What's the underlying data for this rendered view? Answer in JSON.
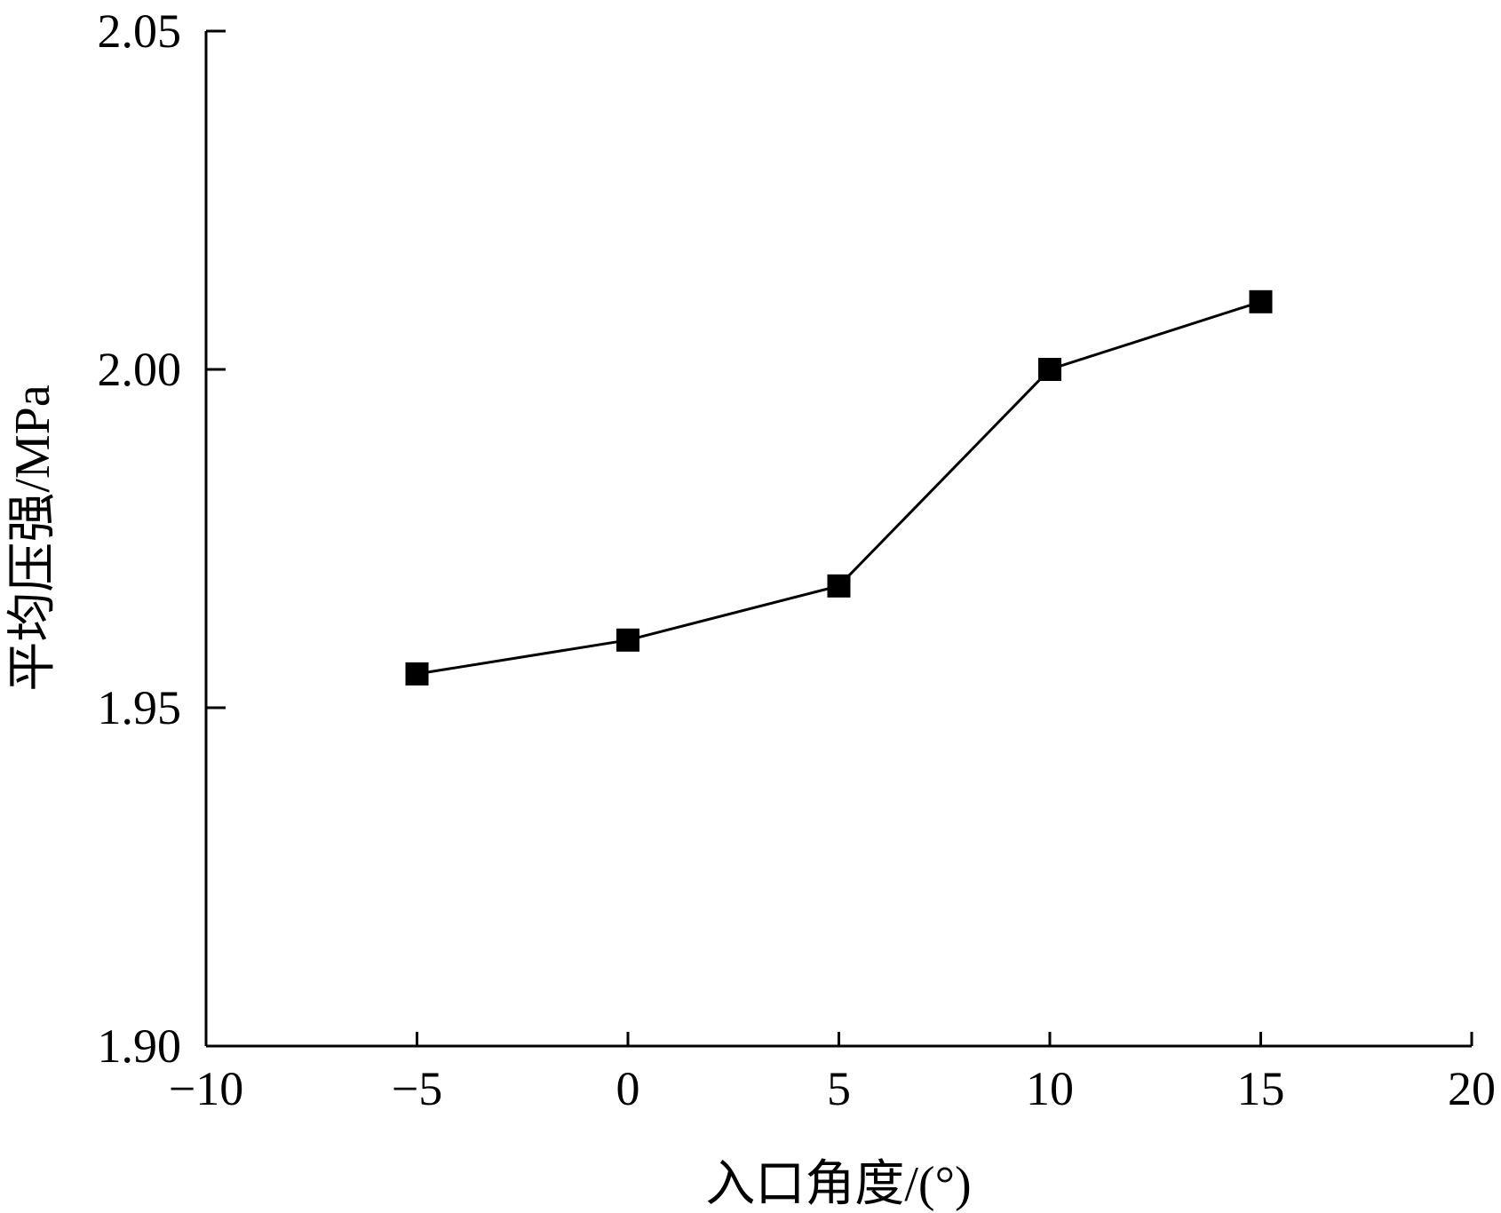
{
  "chart_data": {
    "type": "line",
    "title": "",
    "xlabel": "入口角度/(°)",
    "ylabel": "平均压强/MPa",
    "xlim": [
      -10,
      20
    ],
    "ylim": [
      1.9,
      2.05
    ],
    "x_ticks": [
      -10,
      -5,
      0,
      5,
      10,
      15,
      20
    ],
    "x_tick_labels": [
      "−10",
      "−5",
      "0",
      "5",
      "10",
      "15",
      "20"
    ],
    "y_ticks": [
      1.9,
      1.95,
      2.0,
      2.05
    ],
    "y_tick_labels": [
      "1.90",
      "1.95",
      "2.00",
      "2.05"
    ],
    "grid": false,
    "legend": "none",
    "series": [
      {
        "marker": "square",
        "color": "#000000",
        "x": [
          -5,
          0,
          5,
          10,
          15
        ],
        "y": [
          1.955,
          1.96,
          1.968,
          2.0,
          2.01
        ]
      }
    ]
  }
}
